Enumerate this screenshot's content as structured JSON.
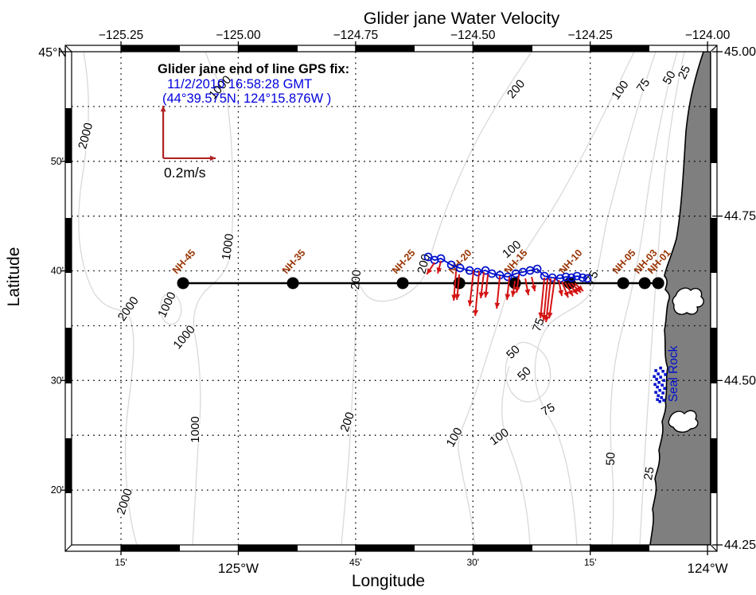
{
  "figure": {
    "title": "Glider jane Water Velocity",
    "xlabel": "Longitude",
    "ylabel": "Latitude"
  },
  "annotation": {
    "header": "Glider jane end of line GPS fix:",
    "line1": "11/2/2010 16:58:28 GMT",
    "line2": "(44°39.575N, 124°15.876W )"
  },
  "scale_arrow": {
    "label": "0.2m/s",
    "value_ms": 0.2,
    "lon": -125.16,
    "lat": 44.838
  },
  "colors": {
    "track_blue": "#0011CC",
    "vector_red": "#D41414",
    "scale_red": "#B22222",
    "station_label": "#993300",
    "annotation_blue": "#0000DD",
    "land_gray": "#7F7F7F",
    "contour_gray": "#D9D9D9",
    "grid_black": "#000000"
  },
  "chart_data": {
    "type": "scatter",
    "subtype": "geographic_quiver_map",
    "title": "Glider jane Water Velocity",
    "xlabel": "Longitude",
    "ylabel": "Latitude",
    "axes": {
      "lon_range": [
        -125.3552,
        -123.9934
      ],
      "lat_range": [
        44.25,
        45.0
      ],
      "top_ticks": [
        {
          "label": "−125.25",
          "lon": -125.25
        },
        {
          "label": "−125.00",
          "lon": -125.0
        },
        {
          "label": "−124.75",
          "lon": -124.75
        },
        {
          "label": "−124.50",
          "lon": -124.5
        },
        {
          "label": "−124.25",
          "lon": -124.25
        },
        {
          "label": "−124.00",
          "lon": -124.0
        }
      ],
      "bottom_ticks": [
        {
          "label": "15'",
          "lon": -125.25,
          "major": false
        },
        {
          "label": "125°W",
          "lon": -125.0,
          "major": true
        },
        {
          "label": "45'",
          "lon": -124.75,
          "major": false
        },
        {
          "label": "30'",
          "lon": -124.5,
          "major": false
        },
        {
          "label": "15'",
          "lon": -124.25,
          "major": false
        },
        {
          "label": "124°W",
          "lon": -124.0,
          "major": true
        }
      ],
      "left_ticks": [
        {
          "label": "45°N",
          "lat": 45.0,
          "major": true
        },
        {
          "label": "50'",
          "lat": 44.8333,
          "major": false
        },
        {
          "label": "40'",
          "lat": 44.6667,
          "major": false
        },
        {
          "label": "30'",
          "lat": 44.5,
          "major": false
        },
        {
          "label": "20'",
          "lat": 44.3333,
          "major": false
        }
      ],
      "right_ticks": [
        {
          "label": "45.00",
          "lat": 45.0
        },
        {
          "label": "44.75",
          "lat": 44.75
        },
        {
          "label": "44.50",
          "lat": 44.5
        },
        {
          "label": "44.25",
          "lat": 44.25
        }
      ],
      "grid_lons": [
        -125.25,
        -125.0,
        -124.75,
        -124.5,
        -124.25
      ],
      "grid_lats": [
        44.9167,
        44.8333,
        44.75,
        44.6667,
        44.5833,
        44.5,
        44.4167,
        44.3333
      ],
      "grid": true
    },
    "transect_lat": 44.648,
    "stations": [
      {
        "name": "NH-45",
        "lon": -125.1177
      },
      {
        "name": "NH-35",
        "lon": -124.8836
      },
      {
        "name": "NH-25",
        "lon": -124.6496
      },
      {
        "name": "NH-20",
        "lon": -124.5291
      },
      {
        "name": "NH-15",
        "lon": -124.4104
      },
      {
        "name": "NH-10",
        "lon": -124.2934
      },
      {
        "name": "NH-05",
        "lon": -124.1797
      },
      {
        "name": "NH-03",
        "lon": -124.1339
      },
      {
        "name": "NH-01",
        "lon": -124.1051
      }
    ],
    "glider_track": [
      {
        "lon": -124.5953,
        "lat": 44.6879
      },
      {
        "lon": -124.5817,
        "lat": 44.6831
      },
      {
        "lon": -124.5682,
        "lat": 44.6855
      },
      {
        "lon": -124.5461,
        "lat": 44.6758
      },
      {
        "lon": -124.5274,
        "lat": 44.671
      },
      {
        "lon": -124.5071,
        "lat": 44.6673
      },
      {
        "lon": -124.4901,
        "lat": 44.6649
      },
      {
        "lon": -124.4732,
        "lat": 44.6673
      },
      {
        "lon": -124.4596,
        "lat": 44.6625
      },
      {
        "lon": -124.4426,
        "lat": 44.6601
      },
      {
        "lon": -124.4257,
        "lat": 44.6577
      },
      {
        "lon": -124.4087,
        "lat": 44.6625
      },
      {
        "lon": -124.3935,
        "lat": 44.6649
      },
      {
        "lon": -124.3782,
        "lat": 44.6673
      },
      {
        "lon": -124.3629,
        "lat": 44.6697
      },
      {
        "lon": -124.3477,
        "lat": 44.6588
      },
      {
        "lon": -124.3307,
        "lat": 44.6564
      },
      {
        "lon": -124.3138,
        "lat": 44.6552
      },
      {
        "lon": -124.3019,
        "lat": 44.6576
      },
      {
        "lon": -124.29,
        "lat": 44.6564
      },
      {
        "lon": -124.2782,
        "lat": 44.6588
      },
      {
        "lon": -124.2663,
        "lat": 44.6564
      },
      {
        "lon": -124.2561,
        "lat": 44.6552
      }
    ],
    "velocity_vectors_ms": [
      {
        "lon": -124.5817,
        "lat": 44.6794,
        "u": -0.03,
        "v": -0.045
      },
      {
        "lon": -124.5682,
        "lat": 44.6819,
        "u": -0.012,
        "v": -0.048
      },
      {
        "lon": -124.5359,
        "lat": 44.6661,
        "u": -0.009,
        "v": -0.112
      },
      {
        "lon": -124.5291,
        "lat": 44.6613,
        "u": -0.009,
        "v": -0.097
      },
      {
        "lon": -124.4986,
        "lat": 44.6673,
        "u": -0.015,
        "v": -0.136
      },
      {
        "lon": -124.4867,
        "lat": 44.6661,
        "u": -0.015,
        "v": -0.17
      },
      {
        "lon": -124.4766,
        "lat": 44.6649,
        "u": -0.012,
        "v": -0.1
      },
      {
        "lon": -124.4681,
        "lat": 44.6613,
        "u": -0.009,
        "v": -0.088
      },
      {
        "lon": -124.4426,
        "lat": 44.6588,
        "u": -0.012,
        "v": -0.124
      },
      {
        "lon": -124.4223,
        "lat": 44.6576,
        "u": -0.009,
        "v": -0.088
      },
      {
        "lon": -124.4019,
        "lat": 44.6613,
        "u": -0.009,
        "v": -0.07
      },
      {
        "lon": -124.4104,
        "lat": 44.6516,
        "u": -0.009,
        "v": -0.061
      },
      {
        "lon": -124.3884,
        "lat": 44.6552,
        "u": 0.012,
        "v": -0.064
      },
      {
        "lon": -124.3748,
        "lat": 44.6576,
        "u": 0.012,
        "v": -0.055
      },
      {
        "lon": -124.3477,
        "lat": 44.6564,
        "u": -0.015,
        "v": -0.155
      },
      {
        "lon": -124.3409,
        "lat": 44.6552,
        "u": -0.015,
        "v": -0.161
      },
      {
        "lon": -124.3341,
        "lat": 44.6552,
        "u": -0.018,
        "v": -0.167
      },
      {
        "lon": -124.3256,
        "lat": 44.6552,
        "u": -0.021,
        "v": -0.152
      },
      {
        "lon": -124.3172,
        "lat": 44.6528,
        "u": 0.012,
        "v": -0.061
      },
      {
        "lon": -124.3104,
        "lat": 44.6504,
        "u": 0.024,
        "v": -0.061
      },
      {
        "lon": -124.3036,
        "lat": 44.6492,
        "u": 0.03,
        "v": -0.052
      },
      {
        "lon": -124.2968,
        "lat": 44.6479,
        "u": 0.036,
        "v": -0.042
      },
      {
        "lon": -124.29,
        "lat": 44.6479,
        "u": 0.036,
        "v": -0.036
      },
      {
        "lon": -124.2833,
        "lat": 44.6479,
        "u": 0.033,
        "v": -0.03
      }
    ],
    "bathymetry_contour_depths_m": [
      25,
      50,
      75,
      100,
      200,
      1000,
      2000
    ],
    "contour_labels": [
      {
        "text": "2000",
        "lon": -125.3178,
        "lat": 44.8706,
        "rot": -75
      },
      {
        "text": "1000",
        "lon": -125.0329,
        "lat": 44.9419,
        "rot": -48
      },
      {
        "text": "1000",
        "lon": -125.0143,
        "lat": 44.7024,
        "rot": -82
      },
      {
        "text": "2000",
        "lon": -125.228,
        "lat": 44.6057,
        "rot": -55
      },
      {
        "text": "1000",
        "lon": -125.1448,
        "lat": 44.6129,
        "rot": -65
      },
      {
        "text": "1000",
        "lon": -125.1092,
        "lat": 44.5621,
        "rot": -50
      },
      {
        "text": "1000",
        "lon": -125.0838,
        "lat": 44.4254,
        "rot": -90
      },
      {
        "text": "2000",
        "lon": -125.2347,
        "lat": 44.3141,
        "rot": -72
      },
      {
        "text": "200",
        "lon": -124.4019,
        "lat": 44.9395,
        "rot": -50
      },
      {
        "text": "100",
        "lon": -124.1797,
        "lat": 44.9383,
        "rot": -55
      },
      {
        "text": "75",
        "lon": -124.1305,
        "lat": 44.9456,
        "rot": -55
      },
      {
        "text": "50",
        "lon": -124.0746,
        "lat": 44.9577,
        "rot": -60
      },
      {
        "text": "25",
        "lon": -124.0424,
        "lat": 44.9661,
        "rot": -65
      },
      {
        "text": "200",
        "lon": -124.597,
        "lat": 44.6758,
        "rot": -75
      },
      {
        "text": "200",
        "lon": -124.7412,
        "lat": 44.6528,
        "rot": -85
      },
      {
        "text": "100",
        "lon": -124.4121,
        "lat": 44.6952,
        "rot": -40
      },
      {
        "text": "75",
        "lon": -124.2391,
        "lat": 44.654,
        "rot": -60
      },
      {
        "text": "75",
        "lon": -124.3528,
        "lat": 44.5827,
        "rot": -70
      },
      {
        "text": "50",
        "lon": -124.4087,
        "lat": 44.5391,
        "rot": -45
      },
      {
        "text": "50",
        "lon": -124.385,
        "lat": 44.5065,
        "rot": -45
      },
      {
        "text": "75",
        "lon": -124.3358,
        "lat": 44.4508,
        "rot": -30
      },
      {
        "text": "200",
        "lon": -124.7599,
        "lat": 44.4351,
        "rot": -70
      },
      {
        "text": "100",
        "lon": -124.5326,
        "lat": 44.4109,
        "rot": -60
      },
      {
        "text": "100",
        "lon": -124.4392,
        "lat": 44.4097,
        "rot": -35
      },
      {
        "text": "50",
        "lon": -124.1984,
        "lat": 44.3807,
        "rot": -88
      },
      {
        "text": "25",
        "lon": -124.1169,
        "lat": 44.3577,
        "rot": -80
      }
    ],
    "seal_rock": {
      "label": "Seal Rock",
      "label_lon": -124.0644,
      "label_lat": 44.51,
      "marks": [
        [
          -124.1,
          44.519
        ],
        [
          -124.1102,
          44.515
        ],
        [
          -124.0949,
          44.514
        ],
        [
          -124.1051,
          44.51
        ],
        [
          -124.0898,
          44.509
        ],
        [
          -124.1136,
          44.506
        ],
        [
          -124.1,
          44.505
        ],
        [
          -124.1085,
          44.502
        ],
        [
          -124.0932,
          44.5
        ],
        [
          -124.1034,
          44.497
        ],
        [
          -124.1119,
          44.494
        ],
        [
          -124.0966,
          44.493
        ],
        [
          -124.1068,
          44.49
        ],
        [
          -124.0915,
          44.488
        ],
        [
          -124.1017,
          44.485
        ],
        [
          -124.1102,
          44.482
        ],
        [
          -124.0949,
          44.481
        ],
        [
          -124.1051,
          44.477
        ],
        [
          -124.0983,
          44.474
        ],
        [
          -124.1068,
          44.471
        ],
        [
          -124.0932,
          44.47
        ],
        [
          -124.1017,
          44.468
        ]
      ]
    }
  }
}
